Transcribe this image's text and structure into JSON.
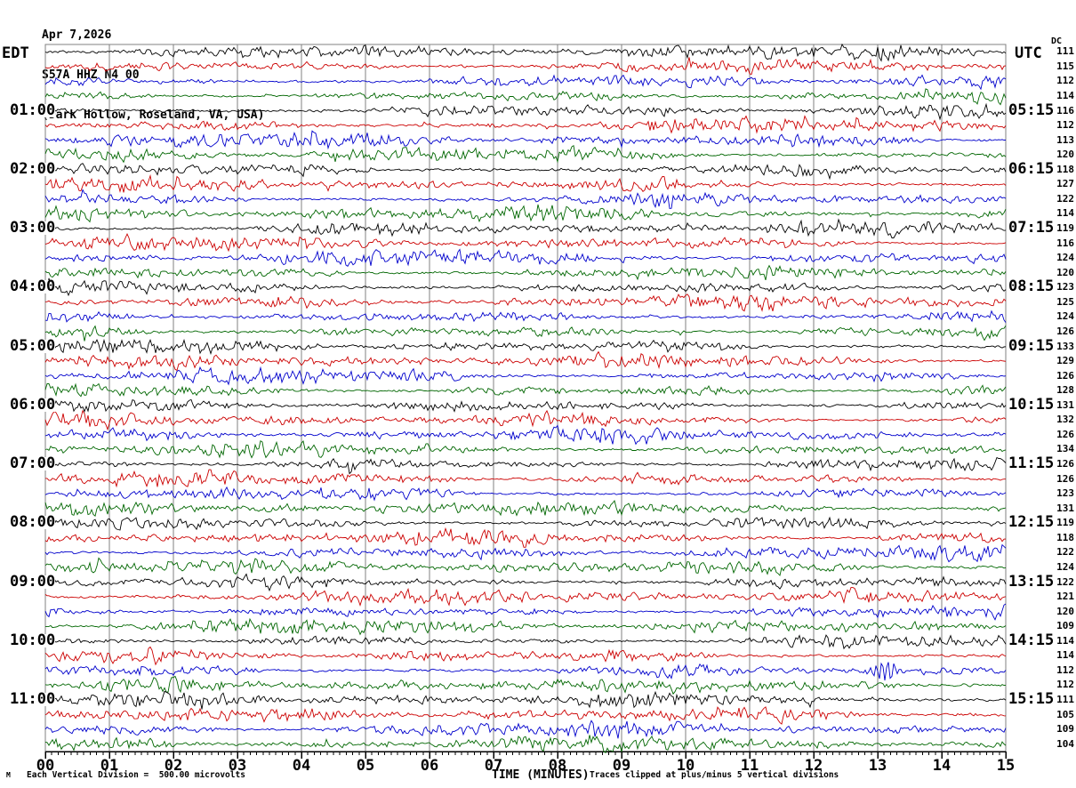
{
  "header": {
    "date": "Apr 7,2026",
    "station": "S57A HHZ N4 00",
    "location": "(Dark Hollow, Roseland, VA, USA)"
  },
  "left_axis": {
    "title": "EDT",
    "hour_labels": [
      "01:00",
      "02:00",
      "03:00",
      "04:00",
      "05:00",
      "06:00",
      "07:00",
      "08:00",
      "09:00",
      "10:00",
      "11:00"
    ]
  },
  "right_axis": {
    "title": "UTC",
    "dc_label": "DC",
    "hour_labels": [
      "05:15",
      "06:15",
      "07:15",
      "08:15",
      "09:15",
      "10:15",
      "11:15",
      "12:15",
      "13:15",
      "14:15",
      "15:15"
    ],
    "dc_values": [
      111,
      115,
      112,
      114,
      116,
      112,
      113,
      120,
      118,
      127,
      122,
      114,
      119,
      116,
      124,
      120,
      123,
      125,
      124,
      126,
      133,
      129,
      126,
      128,
      131,
      132,
      126,
      134,
      126,
      126,
      123,
      131,
      119,
      118,
      122,
      124,
      122,
      121,
      120,
      109,
      114,
      114,
      112,
      112,
      111,
      105,
      109,
      104
    ]
  },
  "x_axis": {
    "title": "TIME (MINUTES)",
    "tick_labels": [
      "00",
      "01",
      "02",
      "03",
      "04",
      "05",
      "06",
      "07",
      "08",
      "09",
      "10",
      "11",
      "12",
      "13",
      "14",
      "15"
    ],
    "minor_ticks_per_minute": 10
  },
  "footer": {
    "scale_note": "Each Vertical Division =  500.00 microvolts",
    "clip_note": "Traces clipped at plus/minus 5 vertical divisions",
    "corner_mark": "M"
  },
  "colors": {
    "trace_cycle": [
      "#000000",
      "#cc0000",
      "#0000cc",
      "#006600"
    ],
    "grid": "#808080",
    "axis": "#000000",
    "background": "#ffffff"
  },
  "chart_data": {
    "type": "line",
    "title": "Helicorder seismogram, station S57A HHZ N4 00 (Dark Hollow, Roseland, VA, USA), Apr 7,2026",
    "xlabel": "TIME (MINUTES)",
    "x_range_minutes": [
      0,
      15
    ],
    "rows": 48,
    "minutes_per_row": 15,
    "row_color_cycle": [
      "black",
      "red",
      "blue",
      "green"
    ],
    "hour_label_row_interval": 4,
    "first_labeled_row": 5,
    "left_time_labels_edt": [
      "01:00",
      "02:00",
      "03:00",
      "04:00",
      "05:00",
      "06:00",
      "07:00",
      "08:00",
      "09:00",
      "10:00",
      "11:00"
    ],
    "right_time_labels_utc": [
      "05:15",
      "06:15",
      "07:15",
      "08:15",
      "09:15",
      "10:15",
      "11:15",
      "12:15",
      "13:15",
      "14:15",
      "15:15"
    ],
    "dc_offsets_per_row": [
      111,
      115,
      112,
      114,
      116,
      112,
      113,
      120,
      118,
      127,
      122,
      114,
      119,
      116,
      124,
      120,
      123,
      125,
      124,
      126,
      133,
      129,
      126,
      128,
      131,
      132,
      126,
      134,
      126,
      126,
      123,
      131,
      119,
      118,
      122,
      124,
      122,
      121,
      120,
      109,
      114,
      114,
      112,
      112,
      111,
      105,
      109,
      104
    ],
    "waveform": "continuous background microseism noise on all 48 traces, clipped at plus/minus 5 vertical divisions; each vertical division = 500.00 microvolts",
    "events": [
      {
        "row": 43,
        "minute": 13.1,
        "color": "blue",
        "relative_amplitude": 12,
        "width_minutes": 0.4
      },
      {
        "row": 48,
        "minute": 7.6,
        "color": "green",
        "relative_amplitude": 6.5,
        "width_minutes": 0.2
      }
    ],
    "grid": "vertical gray lines at every minute",
    "legend": "none"
  }
}
